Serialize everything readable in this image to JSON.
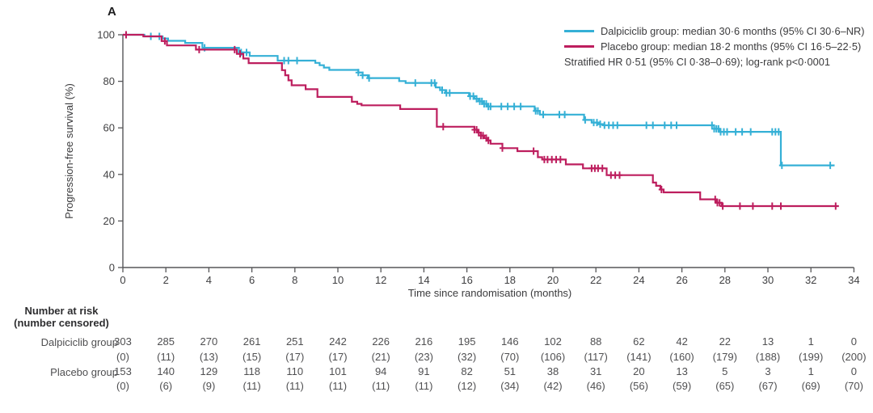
{
  "panel_label": "A",
  "colors": {
    "axis": "#565658",
    "text": "#3f3f41",
    "dalpiciclib": "#35b0d6",
    "placebo": "#bd1e5e"
  },
  "legend": {
    "entries": [
      {
        "label": "Dalpiciclib group: median 30·6 months (95% CI 30·6–NR)"
      },
      {
        "label": "Placebo group: median 18·2 months (95% CI 16·5–22·5)"
      }
    ],
    "note": "Stratified HR 0·51 (95% CI 0·38–0·69); log-rank p<0·0001"
  },
  "chart_data": {
    "type": "line",
    "subtype": "kaplan-meier-step-curves",
    "title": "",
    "xlabel": "Time since randomisation (months)",
    "ylabel": "Progression-free survival (%)",
    "xlim": [
      0,
      34
    ],
    "ylim": [
      0,
      100
    ],
    "xticks": [
      0,
      2,
      4,
      6,
      8,
      10,
      12,
      14,
      16,
      18,
      20,
      22,
      24,
      26,
      28,
      30,
      32,
      34
    ],
    "yticks": [
      0,
      20,
      40,
      60,
      80,
      100
    ],
    "grid": false,
    "legend_position": "top-right",
    "series": [
      {
        "id": "dalpiciclib",
        "name": "Dalpiciclib group",
        "median_months": "30.6",
        "color": "#35b0d6",
        "steps": [
          [
            1.0,
            99.3
          ],
          [
            1.85,
            98.4
          ],
          [
            2.1,
            97.4
          ],
          [
            2.9,
            96.5
          ],
          [
            3.7,
            94.4
          ],
          [
            5.4,
            92.4
          ],
          [
            5.9,
            90.9
          ],
          [
            7.2,
            88.9
          ],
          [
            8.95,
            87.9
          ],
          [
            9.15,
            86.9
          ],
          [
            9.35,
            85.9
          ],
          [
            9.6,
            84.9
          ],
          [
            10.95,
            83.8
          ],
          [
            11.15,
            82.6
          ],
          [
            11.4,
            81.4
          ],
          [
            12.85,
            80.1
          ],
          [
            13.15,
            79.3
          ],
          [
            14.55,
            77.4
          ],
          [
            14.75,
            76.2
          ],
          [
            15.0,
            75.0
          ],
          [
            16.1,
            73.6
          ],
          [
            16.35,
            72.5
          ],
          [
            16.55,
            71.4
          ],
          [
            16.75,
            70.3
          ],
          [
            16.95,
            69.2
          ],
          [
            19.15,
            67.3
          ],
          [
            19.4,
            65.7
          ],
          [
            21.45,
            63.4
          ],
          [
            21.8,
            62.3
          ],
          [
            22.1,
            61.6
          ],
          [
            22.35,
            61.1
          ],
          [
            27.5,
            59.6
          ],
          [
            27.75,
            58.3
          ],
          [
            30.6,
            43.9
          ]
        ],
        "end_time": 33.1,
        "censor_times": [
          1.3,
          1.7,
          3.8,
          5.5,
          5.75,
          7.5,
          7.7,
          8.1,
          10.95,
          11.15,
          11.45,
          13.6,
          14.35,
          14.5,
          14.85,
          15.05,
          15.2,
          16.15,
          16.3,
          16.45,
          16.6,
          16.7,
          16.8,
          16.9,
          17.0,
          17.1,
          17.6,
          17.9,
          18.2,
          18.5,
          19.2,
          19.3,
          19.55,
          20.3,
          20.55,
          21.5,
          21.9,
          22.05,
          22.2,
          22.4,
          22.6,
          22.8,
          23.0,
          24.35,
          24.65,
          25.2,
          25.5,
          25.75,
          27.4,
          27.5,
          27.6,
          27.7,
          27.8,
          27.95,
          28.1,
          28.5,
          28.8,
          29.2,
          30.2,
          30.35,
          30.5,
          30.65,
          32.9
        ]
      },
      {
        "id": "placebo",
        "name": "Placebo group",
        "median_months": "18.2",
        "color": "#bd1e5e",
        "steps": [
          [
            0.95,
            99.3
          ],
          [
            1.8,
            97.3
          ],
          [
            2.05,
            95.4
          ],
          [
            3.4,
            93.6
          ],
          [
            5.3,
            91.8
          ],
          [
            5.6,
            89.8
          ],
          [
            5.85,
            87.8
          ],
          [
            7.4,
            84.8
          ],
          [
            7.55,
            82.6
          ],
          [
            7.7,
            80.4
          ],
          [
            7.85,
            78.3
          ],
          [
            8.5,
            76.6
          ],
          [
            9.05,
            73.3
          ],
          [
            10.65,
            71.2
          ],
          [
            10.9,
            70.3
          ],
          [
            11.1,
            69.7
          ],
          [
            12.9,
            68.1
          ],
          [
            14.6,
            60.5
          ],
          [
            16.35,
            59.2
          ],
          [
            16.5,
            58.0
          ],
          [
            16.65,
            56.7
          ],
          [
            16.8,
            55.6
          ],
          [
            16.95,
            54.6
          ],
          [
            17.1,
            53.2
          ],
          [
            17.65,
            51.3
          ],
          [
            18.35,
            50.0
          ],
          [
            19.3,
            47.4
          ],
          [
            19.5,
            46.4
          ],
          [
            20.6,
            44.3
          ],
          [
            21.4,
            42.6
          ],
          [
            22.5,
            39.7
          ],
          [
            24.65,
            36.5
          ],
          [
            24.8,
            35.1
          ],
          [
            25.0,
            33.5
          ],
          [
            25.15,
            32.3
          ],
          [
            26.85,
            29.3
          ],
          [
            27.6,
            27.8
          ],
          [
            27.85,
            26.4
          ]
        ],
        "end_time": 33.3,
        "censor_times": [
          0.15,
          1.95,
          3.55,
          5.2,
          5.45,
          14.9,
          16.35,
          16.45,
          16.55,
          16.65,
          16.75,
          16.9,
          17.0,
          17.65,
          19.1,
          19.6,
          19.75,
          19.95,
          20.15,
          20.35,
          21.8,
          21.95,
          22.1,
          22.3,
          22.7,
          22.9,
          23.1,
          25.05,
          27.55,
          27.65,
          27.75,
          27.9,
          28.7,
          29.3,
          30.2,
          30.6,
          33.15
        ]
      }
    ]
  },
  "risk_table": {
    "header_line1": "Number at risk",
    "header_line2": "(number censored)",
    "times": [
      0,
      2,
      4,
      6,
      8,
      10,
      12,
      14,
      16,
      18,
      20,
      22,
      24,
      26,
      28,
      30,
      32,
      34
    ],
    "rows": [
      {
        "label": "Dalpiciclib group",
        "at_risk": [
          303,
          285,
          270,
          261,
          251,
          242,
          226,
          216,
          195,
          146,
          102,
          88,
          62,
          42,
          22,
          13,
          1,
          0
        ],
        "censored": [
          "(0)",
          "(11)",
          "(13)",
          "(15)",
          "(17)",
          "(17)",
          "(21)",
          "(23)",
          "(32)",
          "(70)",
          "(106)",
          "(117)",
          "(141)",
          "(160)",
          "(179)",
          "(188)",
          "(199)",
          "(200)"
        ]
      },
      {
        "label": "Placebo group",
        "at_risk": [
          153,
          140,
          129,
          118,
          110,
          101,
          94,
          91,
          82,
          51,
          38,
          31,
          20,
          13,
          5,
          3,
          1,
          0
        ],
        "censored": [
          "(0)",
          "(6)",
          "(9)",
          "(11)",
          "(11)",
          "(11)",
          "(11)",
          "(11)",
          "(12)",
          "(34)",
          "(42)",
          "(46)",
          "(56)",
          "(59)",
          "(65)",
          "(67)",
          "(69)",
          "(70)"
        ]
      }
    ]
  }
}
